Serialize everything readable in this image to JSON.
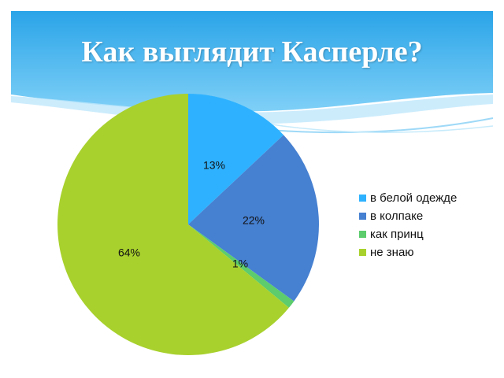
{
  "slide": {
    "title": "Как выглядит Касперле?"
  },
  "chart_data": {
    "type": "pie",
    "title": "",
    "categories": [
      "в белой одежде",
      "в колпаке",
      "как принц",
      "не знаю"
    ],
    "values": [
      13,
      22,
      1,
      64
    ],
    "value_unit": "%",
    "data_labels": [
      "13%",
      "22%",
      "1%",
      "64%"
    ],
    "colors": [
      "#2eb2ff",
      "#4680d1",
      "#5ccc6c",
      "#a8d12d"
    ],
    "legend": "right"
  }
}
